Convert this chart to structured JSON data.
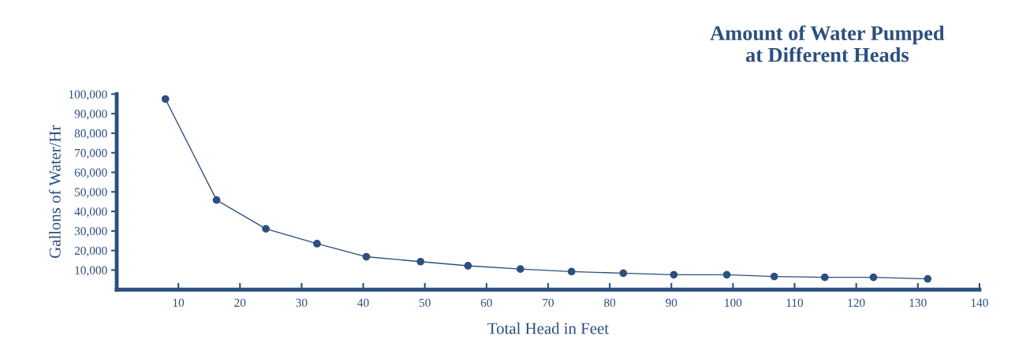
{
  "chart_data": {
    "type": "line",
    "title": "Amount of Water Pumped\nat Different Heads",
    "xlabel": "Total Head in Feet",
    "ylabel": "Gallons of Water/Hr",
    "x": [
      7.9,
      16.2,
      24.2,
      32.5,
      40.5,
      49.3,
      57,
      65.5,
      73.8,
      82.2,
      90.4,
      99,
      106.7,
      114.9,
      122.8,
      131.6
    ],
    "series": [
      {
        "color": "#2b4f7e",
        "values": [
          97500,
          45800,
          31100,
          23500,
          16800,
          14300,
          12200,
          10500,
          9200,
          8400,
          7600,
          7600,
          6700,
          6300,
          6300,
          5500
        ]
      }
    ],
    "xlim": [
      0,
      140
    ],
    "ylim": [
      0,
      100000
    ],
    "xticks": [
      10,
      20,
      30,
      40,
      50,
      60,
      70,
      80,
      90,
      100,
      110,
      120,
      130,
      140
    ],
    "yticks": [
      {
        "value": 10000,
        "label": "10,000"
      },
      {
        "value": 20000,
        "label": "20,000"
      },
      {
        "value": 30000,
        "label": "30,000"
      },
      {
        "value": 40000,
        "label": "40,000"
      },
      {
        "value": 50000,
        "label": "50,000"
      },
      {
        "value": 60000,
        "label": "60,000"
      },
      {
        "value": 70000,
        "label": "70,000"
      },
      {
        "value": 80000,
        "label": "80,000"
      },
      {
        "value": 90000,
        "label": "90,000"
      },
      {
        "value": 100000,
        "label": "100,000"
      }
    ],
    "marker": "circle",
    "line_style": "solid",
    "grid": false,
    "legend": false
  }
}
